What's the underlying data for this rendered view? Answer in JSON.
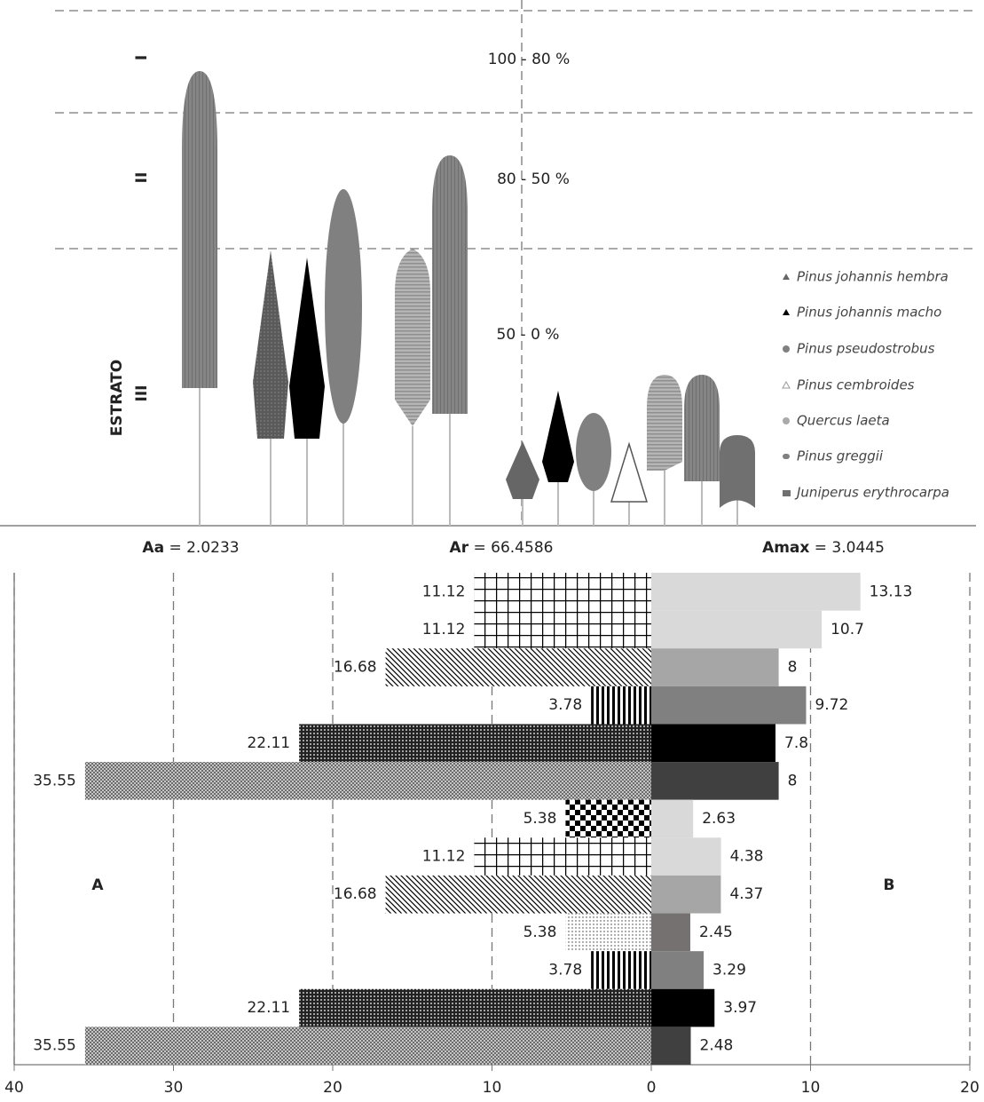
{
  "diagram": {
    "strata_title": "ESTRATO",
    "strata": [
      "I",
      "II",
      "III"
    ],
    "layers": [
      "100 - 80 %",
      "80 - 50 %",
      "50 - 0 %"
    ],
    "legend": [
      "Pinus johannis hembra",
      "Pinus johannis macho",
      "Pinus pseudostrobus",
      "Pinus cembroides",
      "Quercus laeta",
      "Pinus greggii",
      "Juniperus erythrocarpa"
    ],
    "indices": [
      {
        "name": "Aa",
        "text": "= 2.0233"
      },
      {
        "name": "Ar",
        "text": "= 66.4586"
      },
      {
        "name": "Amax",
        "text": "= 3.0445"
      }
    ]
  },
  "chart_data": {
    "type": "bidirectional-bar",
    "xlim": [
      -40,
      20
    ],
    "xticks": [
      {
        "value": -40,
        "label": "40"
      },
      {
        "value": -30,
        "label": "30"
      },
      {
        "value": -20,
        "label": "20"
      },
      {
        "value": -10,
        "label": "10"
      },
      0,
      10,
      20
    ],
    "grid": true,
    "series": [
      {
        "name": "A",
        "values": [
          -11.12,
          -11.12,
          -16.68,
          -3.78,
          -22.11,
          -35.55,
          -5.38,
          -11.12,
          -16.68,
          -5.38,
          -3.78,
          -22.11,
          -35.55
        ],
        "value_labels": [
          "11.12",
          "11.12",
          "16.68",
          "3.78",
          "22.11",
          "35.55",
          "5.38",
          "11.12",
          "16.68",
          "5.38",
          "3.78",
          "22.11",
          "35.55"
        ]
      },
      {
        "name": "B",
        "values": [
          13.13,
          10.7,
          8,
          9.72,
          7.8,
          8,
          2.63,
          4.38,
          4.37,
          2.45,
          3.29,
          3.97,
          2.48
        ],
        "colors": [
          "#d9d9d9",
          "#d9d9d9",
          "#a6a6a6",
          "#808080",
          "#000000",
          "#404040",
          "#d9d9d9",
          "#d9d9d9",
          "#a6a6a6",
          "#767171",
          "#808080",
          "#000000",
          "#404040"
        ]
      }
    ]
  }
}
